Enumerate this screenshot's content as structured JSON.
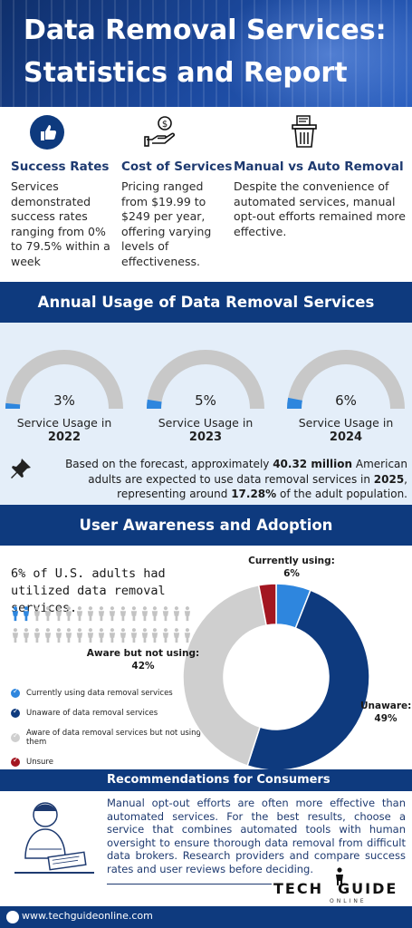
{
  "header": {
    "title": "Data Removal Services: Statistics and Report"
  },
  "features": [
    {
      "icon": "thumbs-up-icon",
      "title": "Success Rates",
      "text": "Services demonstrated success rates ranging from 0% to 79.5% within a week"
    },
    {
      "icon": "hand-coin-icon",
      "title": "Cost of Services",
      "text": "Pricing ranged from $19.99 to $249 per year, offering varying levels of effectiveness."
    },
    {
      "icon": "trash-document-icon",
      "title": "Manual vs Auto Removal",
      "text": "Despite the convenience of automated services, manual opt-out efforts remained more effective."
    }
  ],
  "annual": {
    "title": "Annual Usage of Data Removal Services",
    "gauges": [
      {
        "pct_label": "3%",
        "pct": 3,
        "label": "Service Usage in",
        "year": "2022"
      },
      {
        "pct_label": "5%",
        "pct": 5,
        "label": "Service Usage in",
        "year": "2023"
      },
      {
        "pct_label": "6%",
        "pct": 6,
        "label": "Service Usage in",
        "year": "2024"
      }
    ],
    "forecast": {
      "t1": "Based on the forecast, approximately ",
      "b1": "40.32 million",
      "t2": " American adults are expected to use data removal services in ",
      "b2": "2025",
      "t3": ", representing around ",
      "b3": "17.28%",
      "t4": " of the adult population."
    }
  },
  "awareness": {
    "title": "User Awareness and Adoption",
    "headline": "6% of U.S. adults had utilized data removal services.",
    "people_highlighted": 2,
    "people_total": 34,
    "legend": [
      {
        "label": "Currently using data removal services",
        "color": "#2e86de"
      },
      {
        "label": "Unaware of data removal services",
        "color": "#0e3a7e"
      },
      {
        "label": "Aware of data removal services but not using them",
        "color": "#cfcfcf"
      },
      {
        "label": "Unsure",
        "color": "#a31621"
      }
    ],
    "labels": {
      "currently": "Currently using:",
      "currently_pct": "6%",
      "aware": "Aware but not using:",
      "aware_pct": "42%",
      "unaware": "Unaware:",
      "unaware_pct": "49%"
    }
  },
  "chart_data": {
    "type": "pie",
    "categories": [
      "Currently using",
      "Unaware",
      "Aware but not using",
      "Unsure"
    ],
    "values": [
      6,
      49,
      42,
      3
    ]
  },
  "recommendations": {
    "title": "Recommendations for Consumers",
    "text": "Manual opt-out efforts are often more effective than automated services. For the best results, choose a service that combines automated tools with human oversight to ensure thorough data removal from difficult data brokers. Research providers and compare success rates and user reviews before deciding."
  },
  "logo": {
    "word_left": "TECH",
    "word_right": "GUIDE",
    "sub": "ONLINE"
  },
  "footer": {
    "url": "www.techguideonline.com"
  }
}
